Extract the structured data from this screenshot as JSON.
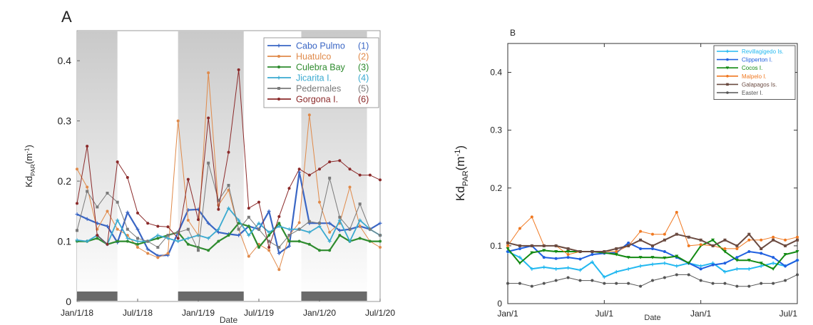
{
  "chart_data": [
    {
      "type": "line",
      "panel_label": "A",
      "xlabel": "Date",
      "ylabel_main": "Kd",
      "ylabel_sub": "PAR",
      "ylabel_unit_open": "(m",
      "ylabel_unit_exp": "-1",
      "ylabel_unit_close": ")",
      "xlim": [
        0,
        30
      ],
      "ylim": [
        0,
        0.45
      ],
      "x_ticks": [
        {
          "v": 0,
          "label": "Jan/1/18"
        },
        {
          "v": 6,
          "label": "Jul/1/18"
        },
        {
          "v": 12,
          "label": "Jan/1/19"
        },
        {
          "v": 18,
          "label": "Jul/1/19"
        },
        {
          "v": 24,
          "label": "Jan/1/20"
        },
        {
          "v": 30,
          "label": "Jul/1/20"
        }
      ],
      "y_ticks": [
        {
          "v": 0,
          "label": "0"
        },
        {
          "v": 0.1,
          "label": "0.1"
        },
        {
          "v": 0.2,
          "label": "0.2"
        },
        {
          "v": 0.3,
          "label": "0.3"
        },
        {
          "v": 0.4,
          "label": "0.4"
        }
      ],
      "shaded_periods": [
        [
          0,
          4
        ],
        [
          10,
          16.5
        ],
        [
          22.2,
          28.7
        ]
      ],
      "grid": false,
      "legend_position": "top-right",
      "series": [
        {
          "name": "Cabo Pulmo",
          "num": "(1)",
          "color": "#3a66c4",
          "marker": "plus",
          "x": [
            0,
            1,
            2,
            3,
            4,
            5,
            6,
            7,
            8,
            9,
            10,
            11,
            12,
            13,
            14,
            15,
            16,
            17,
            18,
            19,
            20,
            21,
            22,
            23,
            24,
            25,
            26,
            27,
            28,
            29,
            30
          ],
          "y": [
            0.145,
            0.137,
            0.13,
            0.125,
            0.098,
            0.148,
            0.12,
            0.087,
            0.076,
            0.077,
            0.115,
            0.152,
            0.153,
            0.13,
            0.115,
            0.112,
            0.11,
            0.125,
            0.12,
            0.15,
            0.08,
            0.092,
            0.215,
            0.13,
            0.13,
            0.13,
            0.118,
            0.12,
            0.125,
            0.12,
            0.13
          ]
        },
        {
          "name": "Huatulco",
          "num": "(2)",
          "color": "#e08a4a",
          "marker": "dot",
          "x": [
            0,
            1,
            2,
            3,
            4,
            5,
            6,
            7,
            8,
            9,
            10,
            11,
            12,
            13,
            14,
            15,
            16,
            17,
            18,
            19,
            20,
            21,
            22,
            23,
            24,
            25,
            26,
            27,
            28,
            29,
            30
          ],
          "y": [
            0.22,
            0.19,
            0.12,
            0.15,
            0.12,
            0.11,
            0.09,
            0.08,
            0.073,
            0.08,
            0.3,
            0.135,
            0.11,
            0.38,
            0.16,
            0.185,
            0.12,
            0.075,
            0.095,
            0.085,
            0.053,
            0.11,
            0.131,
            0.31,
            0.165,
            0.115,
            0.13,
            0.19,
            0.125,
            0.1,
            0.09
          ]
        },
        {
          "name": "Culebra Bay",
          "num": "(3)",
          "color": "#2e8b2e",
          "marker": "dot",
          "x": [
            0,
            1,
            2,
            3,
            4,
            5,
            6,
            7,
            8,
            9,
            10,
            11,
            12,
            13,
            14,
            15,
            16,
            17,
            18,
            19,
            20,
            21,
            22,
            23,
            24,
            25,
            26,
            27,
            28,
            29,
            30
          ],
          "y": [
            0.1,
            0.1,
            0.105,
            0.095,
            0.1,
            0.1,
            0.095,
            0.1,
            0.105,
            0.11,
            0.115,
            0.095,
            0.09,
            0.085,
            0.1,
            0.11,
            0.13,
            0.125,
            0.09,
            0.11,
            0.13,
            0.1,
            0.1,
            0.095,
            0.085,
            0.085,
            0.11,
            0.1,
            0.105,
            0.1,
            0.1
          ]
        },
        {
          "name": "Jicarita I.",
          "num": "(4)",
          "color": "#3aaad0",
          "marker": "plus",
          "x": [
            0,
            1,
            2,
            3,
            4,
            5,
            6,
            7,
            8,
            9,
            10,
            11,
            12,
            13,
            14,
            15,
            16,
            17,
            18,
            19,
            20,
            21,
            22,
            23,
            24,
            25,
            26,
            27,
            28,
            29,
            30
          ],
          "y": [
            0.102,
            0.1,
            0.11,
            0.095,
            0.135,
            0.105,
            0.1,
            0.1,
            0.11,
            0.105,
            0.1,
            0.105,
            0.11,
            0.105,
            0.12,
            0.155,
            0.135,
            0.11,
            0.13,
            0.115,
            0.125,
            0.12,
            0.12,
            0.115,
            0.125,
            0.1,
            0.135,
            0.1,
            0.135,
            0.12,
            0.11
          ]
        },
        {
          "name": "Pedernales",
          "num": "(5)",
          "color": "#7a7a7a",
          "marker": "square",
          "x": [
            0,
            1,
            2,
            3,
            4,
            5,
            6,
            7,
            8,
            9,
            10,
            11,
            12,
            13,
            14,
            15,
            16,
            17,
            18,
            19,
            20,
            21,
            22,
            23,
            24,
            25,
            26,
            27,
            28,
            29,
            30
          ],
          "y": [
            0.118,
            0.183,
            0.157,
            0.18,
            0.165,
            0.12,
            0.105,
            0.1,
            0.09,
            0.11,
            0.115,
            0.12,
            0.085,
            0.23,
            0.168,
            0.193,
            0.12,
            0.14,
            0.12,
            0.1,
            0.09,
            0.11,
            0.12,
            0.133,
            0.13,
            0.205,
            0.14,
            0.12,
            0.162,
            0.12,
            0.11
          ]
        },
        {
          "name": "Gorgona I.",
          "num": "(6)",
          "color": "#8b2a2a",
          "marker": "dot",
          "x": [
            0,
            1,
            2,
            3,
            4,
            5,
            6,
            7,
            8,
            9,
            10,
            11,
            12,
            13,
            14,
            15,
            16,
            17,
            18,
            19,
            20,
            21,
            22,
            23,
            24,
            25,
            26,
            27,
            28,
            29,
            30
          ],
          "y": [
            0.163,
            0.258,
            0.11,
            0.095,
            0.232,
            0.206,
            0.147,
            0.13,
            0.125,
            0.124,
            0.105,
            0.203,
            0.136,
            0.305,
            0.153,
            0.248,
            0.385,
            0.155,
            0.165,
            0.09,
            0.141,
            0.188,
            0.22,
            0.21,
            0.22,
            0.232,
            0.234,
            0.22,
            0.21,
            0.21,
            0.202
          ]
        }
      ]
    },
    {
      "type": "line",
      "panel_label": "B",
      "xlabel": "Date",
      "ylabel_main": "Kd",
      "ylabel_sub": "PAR",
      "ylabel_unit_open": "(m",
      "ylabel_unit_exp": "-1",
      "ylabel_unit_close": ")",
      "xlim": [
        0,
        18
      ],
      "ylim": [
        0,
        0.45
      ],
      "x_ticks": [
        {
          "v": 0,
          "label": "Jan/1"
        },
        {
          "v": 6,
          "label": "Jul/1"
        },
        {
          "v": 12,
          "label": "Jan/1"
        },
        {
          "v": 18,
          "label": "Jul/1"
        }
      ],
      "y_ticks": [
        {
          "v": 0,
          "label": "0"
        },
        {
          "v": 0.1,
          "label": "0.1"
        },
        {
          "v": 0.2,
          "label": "0.2"
        },
        {
          "v": 0.3,
          "label": "0.3"
        },
        {
          "v": 0.4,
          "label": "0.4"
        }
      ],
      "grid": false,
      "legend_position": "top-right",
      "series": [
        {
          "name": "Revillagigedo Is.",
          "color": "#22b8f0",
          "marker": "plus",
          "x": [
            0,
            0.75,
            1.5,
            2.25,
            3,
            3.75,
            4.5,
            5.25,
            6,
            6.75,
            7.5,
            8.25,
            9,
            9.75,
            10.5,
            11.25,
            12,
            12.75,
            13.5,
            14.25,
            15,
            15.75,
            16.5,
            17.25,
            18
          ],
          "y": [
            0.09,
            0.08,
            0.06,
            0.063,
            0.06,
            0.062,
            0.058,
            0.072,
            0.046,
            0.055,
            0.06,
            0.065,
            0.068,
            0.07,
            0.065,
            0.07,
            0.065,
            0.07,
            0.055,
            0.06,
            0.06,
            0.065,
            0.07,
            0.065,
            0.075
          ]
        },
        {
          "name": "Clipperton I.",
          "color": "#2060e0",
          "marker": "dot",
          "x": [
            0,
            0.75,
            1.5,
            2.25,
            3,
            3.75,
            4.5,
            5.25,
            6,
            6.75,
            7.5,
            8.25,
            9,
            9.75,
            10.5,
            11.25,
            12,
            12.75,
            13.5,
            14.25,
            15,
            15.75,
            16.5,
            17.25,
            18
          ],
          "y": [
            0.09,
            0.095,
            0.1,
            0.08,
            0.078,
            0.08,
            0.077,
            0.085,
            0.087,
            0.088,
            0.105,
            0.095,
            0.095,
            0.09,
            0.08,
            0.07,
            0.06,
            0.067,
            0.07,
            0.08,
            0.09,
            0.087,
            0.08,
            0.065,
            0.075
          ]
        },
        {
          "name": "Cocos I.",
          "color": "#138a13",
          "marker": "triangle",
          "x": [
            0,
            0.75,
            1.5,
            2.25,
            3,
            3.75,
            4.5,
            5.25,
            6,
            6.75,
            7.5,
            8.25,
            9,
            9.75,
            10.5,
            11.25,
            12,
            12.75,
            13.5,
            14.25,
            15,
            15.75,
            16.5,
            17.25,
            18
          ],
          "y": [
            0.095,
            0.07,
            0.088,
            0.092,
            0.09,
            0.09,
            0.09,
            0.09,
            0.088,
            0.085,
            0.08,
            0.08,
            0.08,
            0.079,
            0.082,
            0.07,
            0.1,
            0.11,
            0.09,
            0.075,
            0.075,
            0.07,
            0.06,
            0.085,
            0.09
          ]
        },
        {
          "name": "Malpelo I.",
          "color": "#f07820",
          "marker": "dot",
          "x": [
            0,
            0.75,
            1.5,
            2.25,
            3,
            3.75,
            4.5,
            5.25,
            6,
            6.75,
            7.5,
            8.25,
            9,
            9.75,
            10.5,
            11.25,
            12,
            12.75,
            13.5,
            14.25,
            15,
            15.75,
            16.5,
            17.25,
            18
          ],
          "y": [
            0.1,
            0.13,
            0.15,
            0.1,
            0.1,
            0.085,
            0.09,
            0.09,
            0.09,
            0.09,
            0.1,
            0.125,
            0.12,
            0.12,
            0.158,
            0.1,
            0.102,
            0.1,
            0.095,
            0.095,
            0.11,
            0.11,
            0.115,
            0.11,
            0.115
          ]
        },
        {
          "name": "Galapagos Is.",
          "color": "#6a4a40",
          "marker": "square",
          "x": [
            0,
            0.75,
            1.5,
            2.25,
            3,
            3.75,
            4.5,
            5.25,
            6,
            6.75,
            7.5,
            8.25,
            9,
            9.75,
            10.5,
            11.25,
            12,
            12.75,
            13.5,
            14.25,
            15,
            15.75,
            16.5,
            17.25,
            18
          ],
          "y": [
            0.105,
            0.1,
            0.1,
            0.1,
            0.1,
            0.095,
            0.09,
            0.09,
            0.09,
            0.095,
            0.1,
            0.11,
            0.1,
            0.11,
            0.12,
            0.115,
            0.11,
            0.1,
            0.11,
            0.1,
            0.12,
            0.095,
            0.11,
            0.1,
            0.11
          ]
        },
        {
          "name": "Easter I.",
          "color": "#555555",
          "marker": "dot",
          "x": [
            0,
            0.75,
            1.5,
            2.25,
            3,
            3.75,
            4.5,
            5.25,
            6,
            6.75,
            7.5,
            8.25,
            9,
            9.75,
            10.5,
            11.25,
            12,
            12.75,
            13.5,
            14.25,
            15,
            15.75,
            16.5,
            17.25,
            18
          ],
          "y": [
            0.035,
            0.035,
            0.03,
            0.035,
            0.04,
            0.045,
            0.04,
            0.04,
            0.035,
            0.035,
            0.035,
            0.03,
            0.04,
            0.045,
            0.05,
            0.05,
            0.04,
            0.035,
            0.035,
            0.03,
            0.03,
            0.035,
            0.035,
            0.04,
            0.05
          ]
        }
      ]
    }
  ]
}
